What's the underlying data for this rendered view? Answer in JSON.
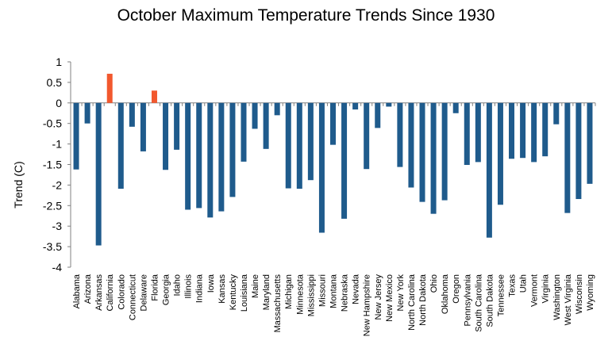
{
  "chart_data": {
    "type": "bar",
    "title": "October Maximum Temperature Trends Since 1930",
    "xlabel": "",
    "ylabel": "Trend (C)",
    "ylim": [
      -4,
      1
    ],
    "yticks": [
      "1",
      "0.5",
      "0",
      "-0.5",
      "-1",
      "-1.5",
      "-2",
      "-2.5",
      "-3",
      "-3.5",
      "-4"
    ],
    "grid": false,
    "legend": "none",
    "colors": {
      "negative": "#1f5b8c",
      "positive": "#f2582e"
    },
    "categories": [
      "Alabama",
      "Arizona",
      "Arkansas",
      "California",
      "Colorado",
      "Connecticut",
      "Delaware",
      "Florida",
      "Georgia",
      "Idaho",
      "Illinois",
      "Indiana",
      "Iowa",
      "Kansas",
      "Kentucky",
      "Louisiana",
      "Maine",
      "Maryland",
      "Massachusetts",
      "Michigan",
      "Minnesota",
      "Mississippi",
      "Missouri",
      "Montana",
      "Nebraska",
      "Nevada",
      "New  Hampshire",
      "New  Jersey",
      "New  Mexico",
      "New York",
      "North  Carolina",
      "North  Dakota",
      "Ohio",
      "Oklahoma",
      "Oregon",
      "Pennsylvania",
      "South  Carolina",
      "South  Dakota",
      "Tennessee",
      "Texas",
      "Utah",
      "Vermont",
      "Virginia",
      "Washington",
      "West  Virginia",
      "Wisconsin",
      "Wyoming"
    ],
    "values": [
      -1.62,
      -0.5,
      -3.47,
      0.71,
      -2.09,
      -0.58,
      -1.18,
      0.3,
      -1.63,
      -1.14,
      -2.6,
      -2.56,
      -2.79,
      -2.64,
      -2.29,
      -1.43,
      -0.63,
      -1.12,
      -0.3,
      -2.08,
      -2.09,
      -1.88,
      -3.16,
      -1.02,
      -2.82,
      -0.16,
      -1.61,
      -0.61,
      -0.09,
      -1.56,
      -2.06,
      -2.41,
      -2.7,
      -2.37,
      -0.25,
      -1.51,
      -1.44,
      -3.28,
      -2.48,
      -1.36,
      -1.34,
      -1.44,
      -1.3,
      -0.52,
      -2.68,
      -2.34,
      -1.97
    ]
  }
}
